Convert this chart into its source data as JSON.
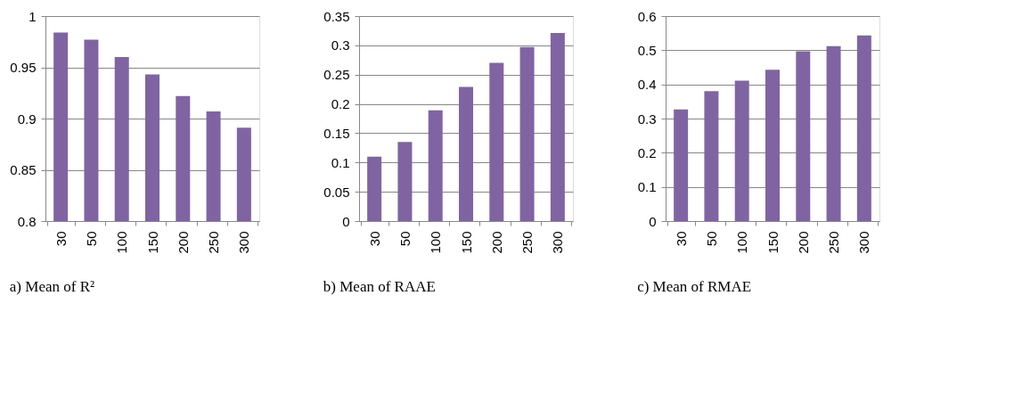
{
  "chart_data": [
    {
      "type": "bar",
      "title": "a)   Mean of R²",
      "categories": [
        "30",
        "50",
        "100",
        "150",
        "200",
        "250",
        "300"
      ],
      "series": [
        {
          "color": "#8064a2",
          "values": [
            0.984,
            0.977,
            0.96,
            0.943,
            0.922,
            0.907,
            0.891
          ]
        }
      ],
      "ylim": [
        0.8,
        1
      ],
      "yticks": [
        0.8,
        0.85,
        0.9,
        0.95,
        1
      ],
      "grid": "y"
    },
    {
      "type": "bar",
      "title": "b)   Mean of RAAE",
      "categories": [
        "30",
        "50",
        "100",
        "150",
        "200",
        "250",
        "300"
      ],
      "series": [
        {
          "color": "#8064a2",
          "values": [
            0.11,
            0.135,
            0.189,
            0.229,
            0.27,
            0.297,
            0.321
          ]
        }
      ],
      "ylim": [
        0,
        0.35
      ],
      "yticks": [
        0,
        0.05,
        0.1,
        0.15,
        0.2,
        0.25,
        0.3,
        0.35
      ],
      "grid": "y"
    },
    {
      "type": "bar",
      "title": "c)   Mean of RMAE",
      "categories": [
        "30",
        "50",
        "100",
        "150",
        "200",
        "250",
        "300"
      ],
      "series": [
        {
          "color": "#8064a2",
          "values": [
            0.327,
            0.38,
            0.411,
            0.443,
            0.497,
            0.512,
            0.543
          ]
        }
      ],
      "ylim": [
        0,
        0.6
      ],
      "yticks": [
        0,
        0.1,
        0.2,
        0.3,
        0.4,
        0.5,
        0.6
      ],
      "grid": "y"
    }
  ]
}
